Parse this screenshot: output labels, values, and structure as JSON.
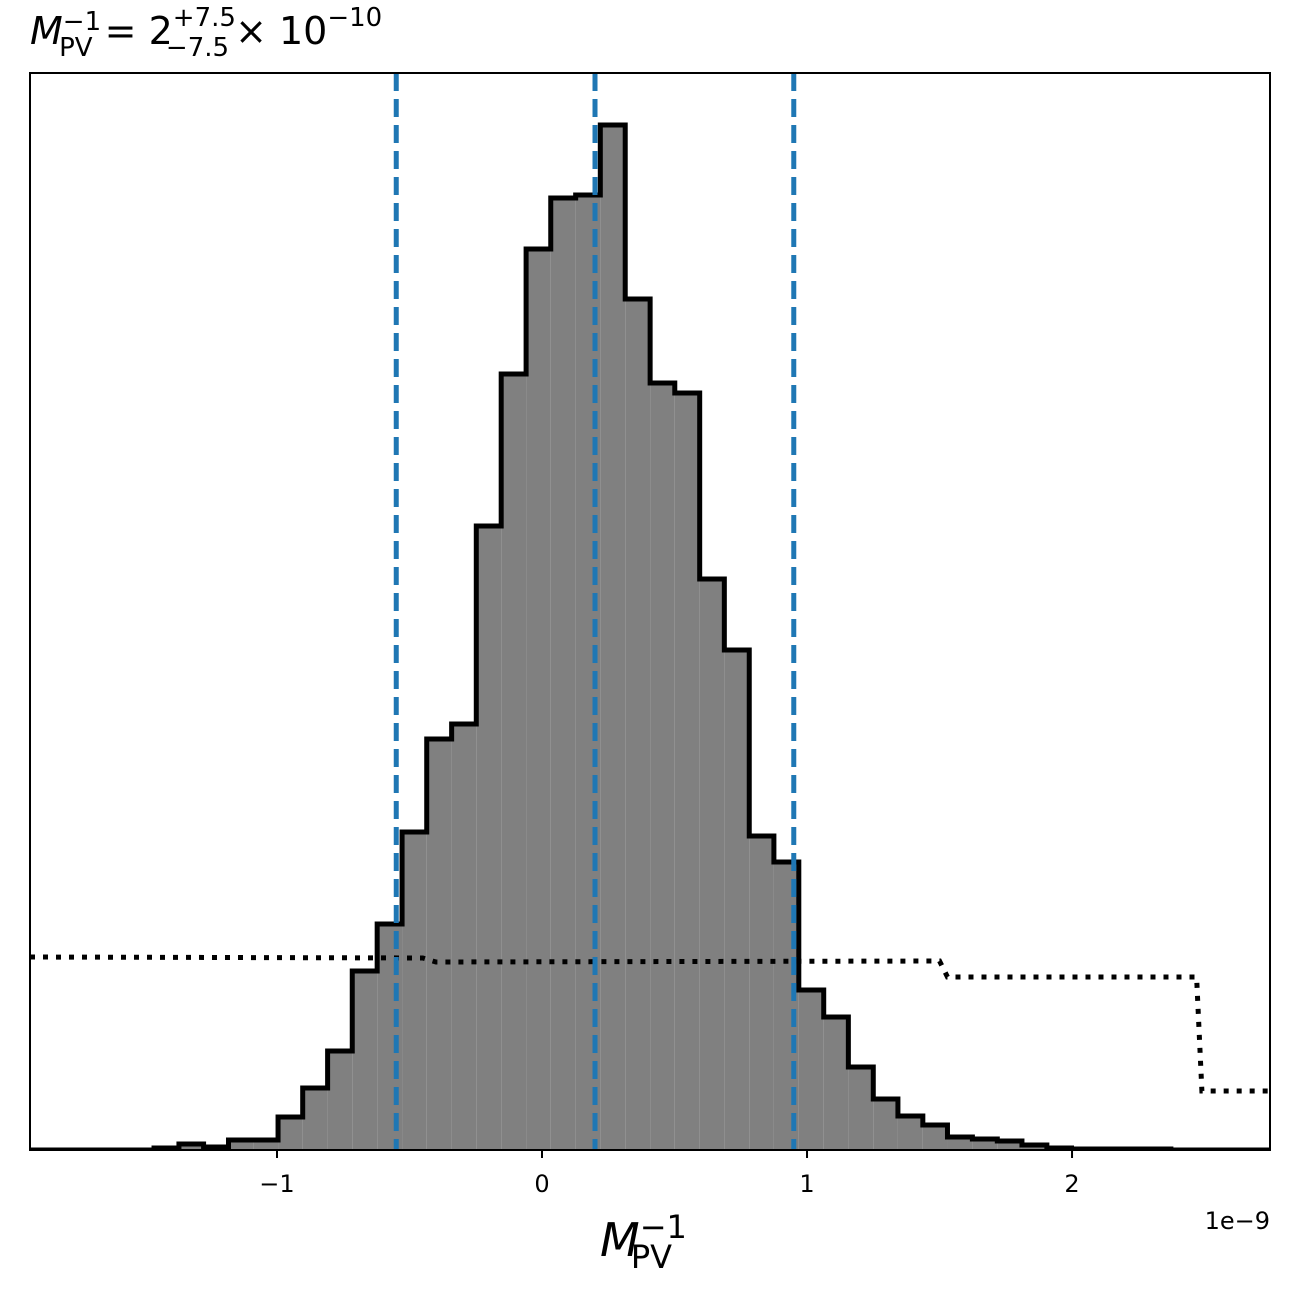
{
  "chart_data": {
    "type": "histogram",
    "title": {
      "symbol": "M",
      "sub": "PV",
      "sup": "−1",
      "eq": " = 2",
      "plus": "+7.5",
      "minus": "−7.5",
      "times": "× 10",
      "exp": "−10"
    },
    "xlabel": {
      "symbol": "M",
      "sub": "PV",
      "sup": "−1"
    },
    "x_offset_label": "1e−9",
    "bins": [
      -1.932,
      -1.838,
      -1.745,
      -1.651,
      -1.557,
      -1.464,
      -1.37,
      -1.277,
      -1.183,
      -1.09,
      -0.996,
      -0.903,
      -0.809,
      -0.716,
      -0.622,
      -0.528,
      -0.435,
      -0.341,
      -0.248,
      -0.154,
      -0.06,
      0.033,
      0.127,
      0.22,
      0.314,
      0.408,
      0.501,
      0.595,
      0.688,
      0.782,
      0.875,
      0.969,
      1.063,
      1.156,
      1.25,
      1.343,
      1.437,
      1.53,
      1.624,
      1.718,
      1.811,
      1.905,
      1.998,
      2.092,
      2.185,
      2.279,
      2.373,
      2.466,
      2.56,
      2.653,
      2.747
    ],
    "values": [
      0,
      0,
      0,
      0,
      0,
      0.2,
      0.6,
      0.3,
      1.0,
      1.0,
      3.3,
      6.2,
      9.9,
      17.9,
      22.6,
      31.8,
      41.1,
      42.6,
      62.4,
      77.6,
      90.1,
      95.2,
      95.5,
      102.5,
      85.1,
      76.7,
      75.7,
      57.1,
      50.0,
      31.4,
      28.8,
      16.0,
      13.3,
      8.3,
      5.1,
      3.4,
      2.5,
      1.3,
      1.1,
      0.9,
      0.5,
      0.2,
      0.1,
      0.1,
      0.1,
      0.1,
      0,
      0,
      0,
      0
    ],
    "color": "#808080",
    "edgecolor": "#000000",
    "vlines": [
      -0.55,
      0.2,
      0.95
    ],
    "vline_color": "#1f77b4",
    "prior": {
      "x": [
        -1.932,
        -0.45,
        -0.4,
        1.5,
        1.53,
        2.47,
        2.49,
        2.747
      ],
      "values": [
        19.3,
        19.2,
        18.8,
        18.9,
        17.3,
        17.3,
        5.9,
        5.9
      ],
      "color": "#000000"
    },
    "xlim": [
      -1.932,
      2.747
    ],
    "ylim": [
      0,
      107.7
    ],
    "xticks": [
      {
        "value": -1,
        "label": "−1"
      },
      0,
      1,
      2
    ]
  }
}
